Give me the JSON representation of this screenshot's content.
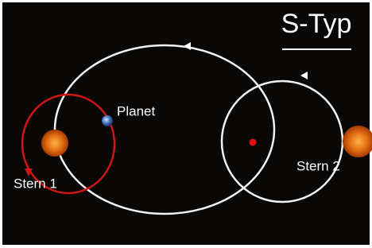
{
  "title": "S-Typ",
  "labels": {
    "planet": "Planet",
    "star1": "Stern 1",
    "star2": "Stern 2"
  }
}
